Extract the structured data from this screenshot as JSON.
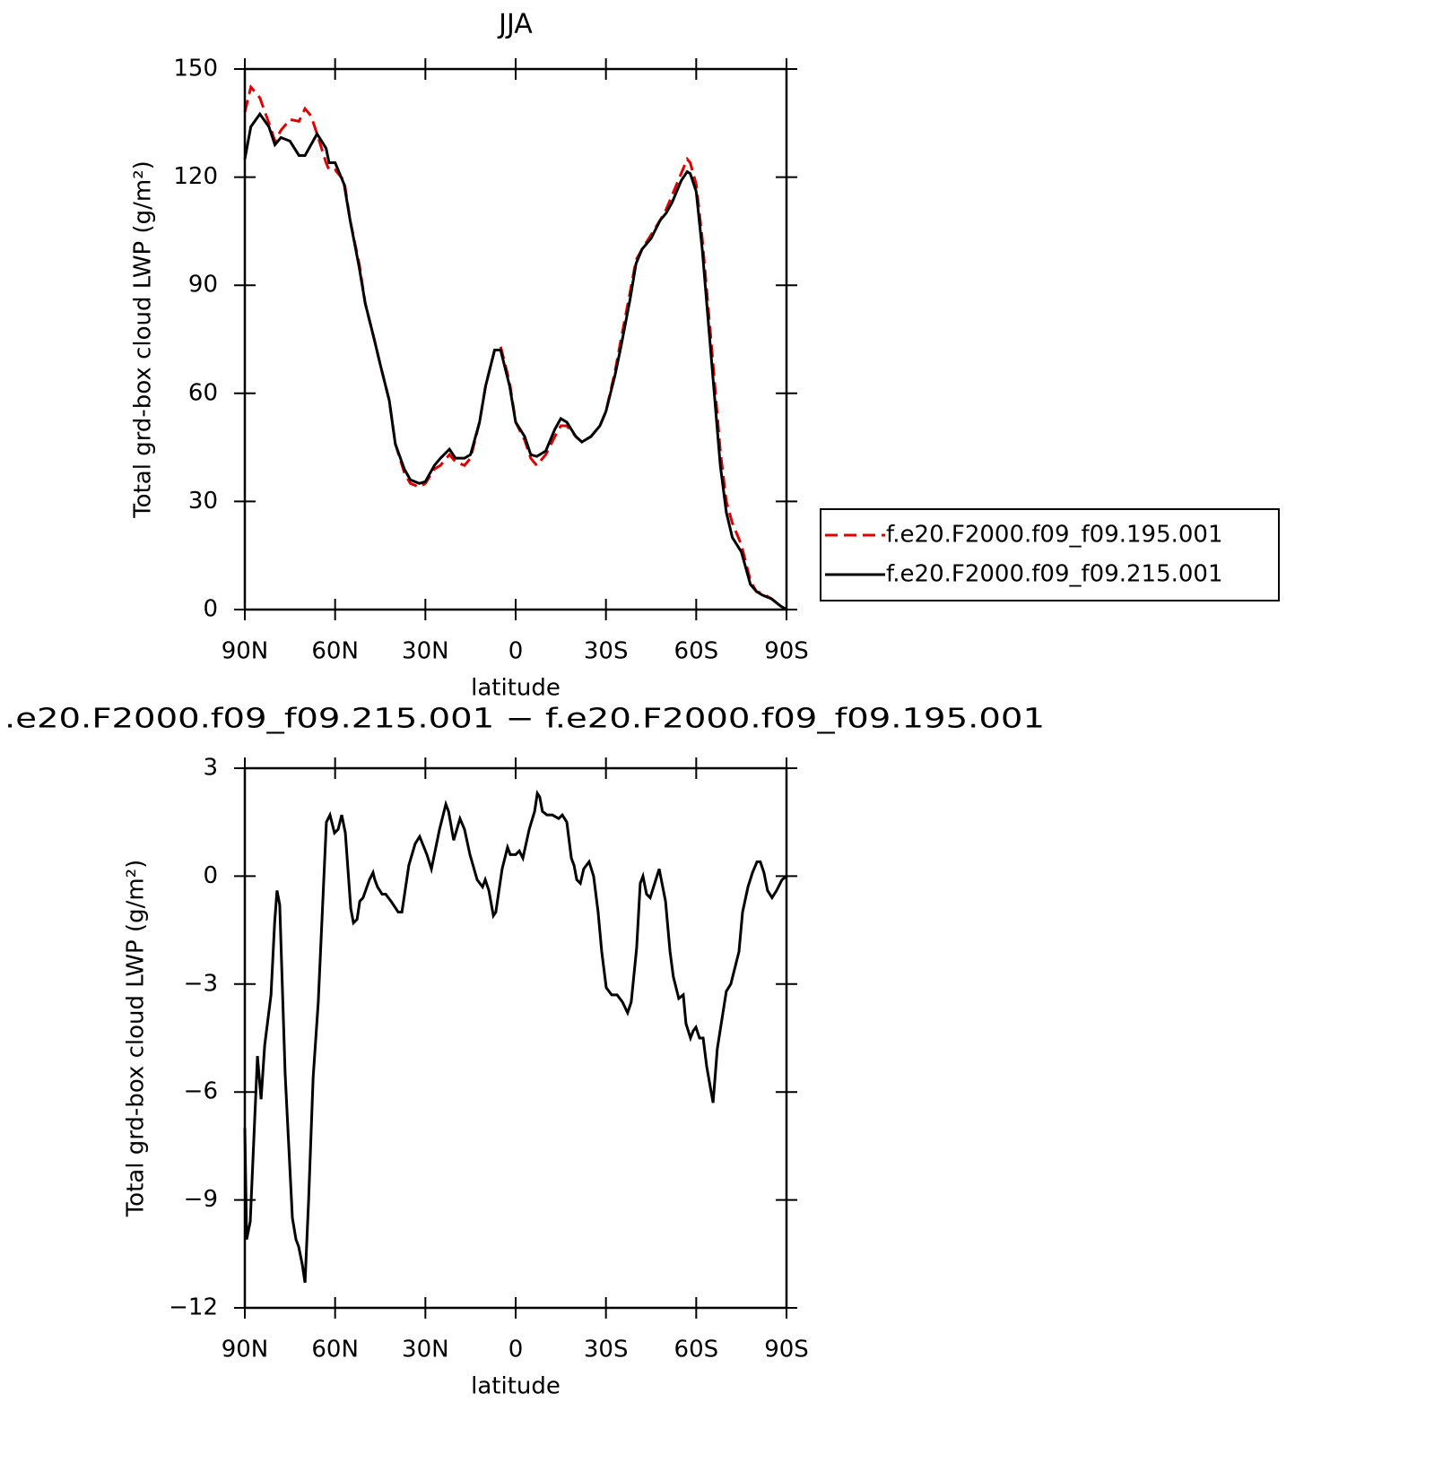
{
  "chart_data": [
    {
      "type": "line",
      "title": "JJA",
      "x_label": "latitude",
      "y_label": "Total grd-box cloud LWP (g/m²)",
      "xlim": [
        90,
        -90
      ],
      "ylim": [
        0,
        150
      ],
      "xticks": [
        {
          "value": 90,
          "label": "90N"
        },
        {
          "value": 60,
          "label": "60N"
        },
        {
          "value": 30,
          "label": "30N"
        },
        0,
        {
          "value": -30,
          "label": "30S"
        },
        {
          "value": -60,
          "label": "60S"
        },
        {
          "value": -90,
          "label": "90S"
        }
      ],
      "yticks": [
        0,
        30,
        60,
        90,
        120,
        150
      ],
      "legend": "right",
      "x": [
        90,
        88,
        85,
        82,
        80,
        78,
        75,
        72,
        70,
        68,
        66,
        63,
        62,
        60,
        57,
        55,
        52,
        50,
        47,
        45,
        42,
        40,
        37,
        35,
        32,
        30,
        27,
        25,
        22,
        20,
        17,
        15,
        12,
        10,
        7,
        5,
        2,
        0,
        -3,
        -5,
        -7,
        -10,
        -13,
        -15,
        -17,
        -20,
        -22,
        -25,
        -28,
        -30,
        -33,
        -35,
        -38,
        -40,
        -42,
        -45,
        -48,
        -50,
        -52,
        -55,
        -57,
        -58,
        -60,
        -62,
        -65,
        -68,
        -70,
        -72,
        -75,
        -78,
        -80,
        -82,
        -85,
        -88,
        -90
      ],
      "series": [
        {
          "name": "f.e20.F2000.f09_f09.195.001",
          "color": "#e00000",
          "dash": "dashed",
          "values": [
            138,
            145,
            142,
            135,
            130,
            133,
            136,
            135.5,
            139,
            137,
            132,
            124,
            122,
            122,
            119,
            108,
            96,
            85,
            75,
            68,
            58,
            46,
            38,
            35,
            34,
            35,
            39,
            40,
            43,
            41,
            40,
            42,
            52,
            62,
            72,
            73,
            63,
            52,
            47,
            42,
            40,
            43,
            48,
            51,
            51,
            48,
            46.5,
            48,
            51,
            55,
            66,
            75,
            88,
            97,
            100,
            104,
            108,
            111,
            115,
            121,
            125,
            124,
            118,
            103,
            74,
            44,
            30,
            24,
            18,
            8,
            5,
            4.5,
            3,
            1,
            0
          ]
        },
        {
          "name": "f.e20.F2000.f09_f09.215.001",
          "color": "#000000",
          "dash": "solid",
          "values": [
            125,
            134,
            137.5,
            134,
            129,
            131,
            130,
            126,
            126,
            129,
            132,
            128,
            124,
            124,
            118,
            108,
            95,
            85,
            75,
            68,
            58,
            46,
            39,
            36,
            35,
            35.5,
            40,
            42,
            44.5,
            42,
            42,
            43,
            52,
            62,
            72,
            72,
            62,
            52,
            48,
            43,
            42.5,
            44,
            50,
            53,
            52,
            48,
            46.5,
            48,
            51,
            55,
            65,
            73,
            86,
            96,
            100,
            103,
            108,
            110,
            113,
            119,
            121.5,
            121,
            116,
            100,
            70,
            40,
            27,
            20,
            16,
            7,
            5,
            4,
            3,
            1,
            0
          ]
        }
      ]
    },
    {
      "type": "line",
      "title": ".e20.F2000.f09_f09.215.001 − f.e20.F2000.f09_f09.195.001",
      "x_label": "latitude",
      "y_label": "Total grd-box cloud LWP (g/m²)",
      "xlim": [
        90,
        -90
      ],
      "ylim": [
        -12,
        3
      ],
      "xticks": [
        {
          "value": 90,
          "label": "90N"
        },
        {
          "value": 60,
          "label": "60N"
        },
        {
          "value": 30,
          "label": "30N"
        },
        0,
        {
          "value": -30,
          "label": "30S"
        },
        {
          "value": -60,
          "label": "60S"
        },
        {
          "value": -90,
          "label": "90S"
        }
      ],
      "yticks": [
        {
          "value": -12,
          "label": "−12"
        },
        {
          "value": -9,
          "label": "−9"
        },
        {
          "value": -6,
          "label": "−6"
        },
        {
          "value": -3,
          "label": "−3"
        },
        0,
        3
      ],
      "color": "#000000",
      "x": [
        90,
        89.4,
        88.2,
        85.8,
        84.6,
        83.4,
        81.3,
        80.1,
        79.3,
        78.4,
        76.6,
        74.2,
        73,
        72.1,
        70.9,
        70,
        68.8,
        67.3,
        65.6,
        62.9,
        61.7,
        60.2,
        59,
        57.8,
        56.6,
        54.8,
        53.9,
        52.7,
        51.8,
        50.7,
        48.6,
        47.4,
        46.8,
        45.9,
        44.4,
        43.2,
        41.4,
        39,
        37.8,
        35.5,
        33.4,
        31.9,
        29.5,
        28,
        25.3,
        23.2,
        22.3,
        20.6,
        18.5,
        17,
        15.2,
        12.8,
        11,
        10.1,
        8.9,
        7.4,
        6.6,
        4.5,
        2.7,
        1.8,
        0,
        -1.2,
        -2.4,
        -4.5,
        -6.3,
        -7.2,
        -8,
        -8.9,
        -10.4,
        -12.2,
        -14.3,
        -15.5,
        -17,
        -18.5,
        -19.4,
        -20.3,
        -21.5,
        -22.6,
        -24.4,
        -25.9,
        -27.4,
        -28.6,
        -30.1,
        -31.9,
        -33.7,
        -35.5,
        -37.2,
        -38.4,
        -40.2,
        -41.4,
        -42.3,
        -43.5,
        -44.7,
        -46.2,
        -47.7,
        -49.8,
        -51.3,
        -52.4,
        -54.2,
        -55.7,
        -56.6,
        -58.1,
        -59,
        -59.9,
        -61.1,
        -62.3,
        -63.5,
        -65.6,
        -67,
        -68.5,
        -70,
        -71.5,
        -74.2,
        -75.4,
        -77.2,
        -78.7,
        -80.2,
        -81.3,
        -82.5,
        -83.7,
        -85.2,
        -86.7,
        -88.5,
        -90
      ],
      "values": [
        -7,
        -10.1,
        -9.6,
        -5,
        -6.2,
        -4.7,
        -3.3,
        -1.3,
        -0.4,
        -0.8,
        -5.5,
        -9.5,
        -10.1,
        -10.3,
        -10.8,
        -11.3,
        -9,
        -5.6,
        -3.5,
        1.5,
        1.7,
        1.2,
        1.3,
        1.7,
        1.2,
        -0.9,
        -1.3,
        -1.2,
        -0.7,
        -0.6,
        -0.1,
        0.1,
        -0.1,
        -0.3,
        -0.5,
        -0.5,
        -0.7,
        -1,
        -1,
        0.3,
        0.9,
        1.1,
        0.6,
        0.2,
        1.3,
        2,
        1.8,
        1,
        1.6,
        1.3,
        0.6,
        -0.1,
        -0.3,
        -0.1,
        -0.4,
        -1.1,
        -1,
        0.2,
        0.8,
        0.6,
        0.6,
        0.7,
        0.5,
        1.3,
        1.8,
        2.3,
        2.2,
        1.8,
        1.7,
        1.7,
        1.6,
        1.7,
        1.5,
        0.5,
        0.3,
        -0.1,
        -0.2,
        0.2,
        0.4,
        0,
        -1,
        -2.1,
        -3.1,
        -3.3,
        -3.3,
        -3.5,
        -3.8,
        -3.5,
        -2,
        -0.2,
        0,
        -0.5,
        -0.6,
        -0.2,
        0.2,
        -0.7,
        -2.1,
        -2.8,
        -3.4,
        -3.3,
        -4.1,
        -4.5,
        -4.3,
        -4.2,
        -4.5,
        -4.5,
        -5.3,
        -6.3,
        -4.8,
        -4,
        -3.2,
        -3,
        -2.1,
        -1,
        -0.3,
        0.1,
        0.4,
        0.4,
        0.1,
        -0.4,
        -0.6,
        -0.4,
        -0.1,
        0
      ]
    }
  ]
}
